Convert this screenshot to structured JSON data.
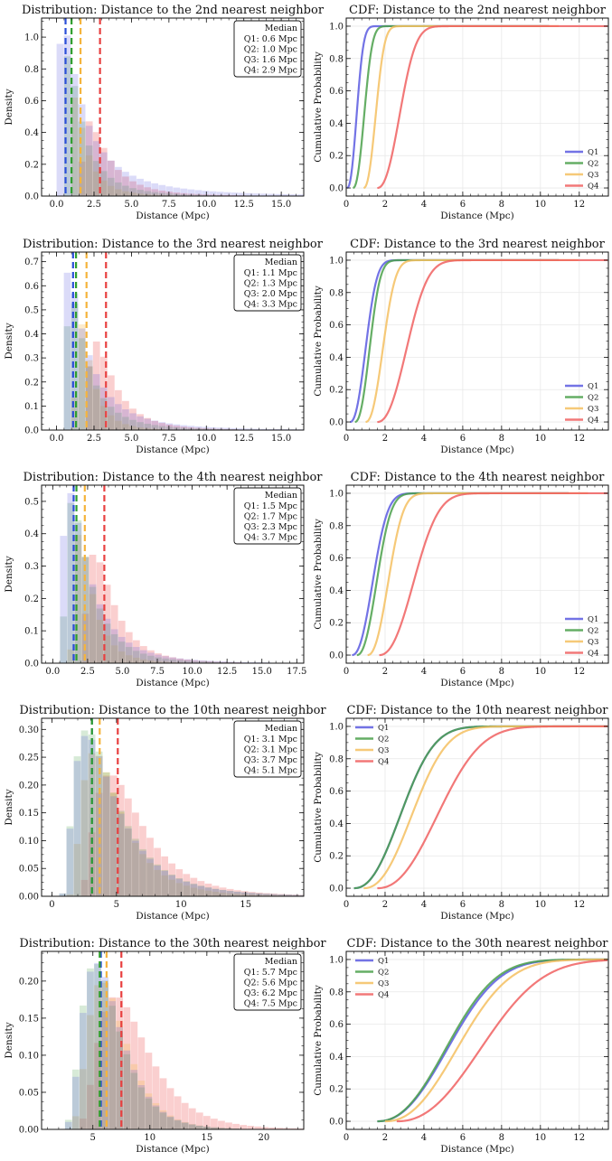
{
  "colors": {
    "Q1": "#5a5ae0",
    "Q2": "#4aa04a",
    "Q3": "#f5c060",
    "Q4": "#f06060",
    "Q1_median": "#2b4ed8",
    "Q2_median": "#2f9e2f",
    "Q3_median": "#f5b43c",
    "Q4_median": "#e84040"
  },
  "chart_data": [
    {
      "type": "bar",
      "title": "Distribution: Distance to the 2nd nearest neighbor",
      "xlabel": "Distance (Mpc)",
      "ylabel": "Density",
      "xlim": [
        -1,
        16.5
      ],
      "ylim": [
        0,
        1.12
      ],
      "xticks": [
        "0.0",
        "2.5",
        "5.0",
        "7.5",
        "10.0",
        "12.5",
        "15.0"
      ],
      "xtick_values": [
        0,
        2.5,
        5,
        7.5,
        10,
        12.5,
        15
      ],
      "yticks": [
        "0.0",
        "0.2",
        "0.4",
        "0.6",
        "0.8",
        "1.0"
      ],
      "ytick_values": [
        0,
        0.2,
        0.4,
        0.6,
        0.8,
        1.0
      ],
      "legend_title": "Median",
      "legend": [
        "Q1: 0.6 Mpc",
        "Q2: 1.0 Mpc",
        "Q3: 1.6 Mpc",
        "Q4: 2.9 Mpc"
      ],
      "medians": [
        0.6,
        1.0,
        1.6,
        2.9
      ],
      "dist_params": [
        {
          "start": 0.05,
          "mode": 0.45,
          "sigma": 0.75
        },
        {
          "start": 0.3,
          "mode": 0.75,
          "sigma": 0.8
        },
        {
          "start": 0.8,
          "mode": 1.2,
          "sigma": 1.0
        },
        {
          "start": 1.5,
          "mode": 2.2,
          "sigma": 1.6
        }
      ],
      "peak_density": [
        1.1,
        0.88,
        0.62,
        0.47
      ]
    },
    {
      "type": "line",
      "title": "CDF: Distance to the 2nd nearest neighbor",
      "xlabel": "Distance (Mpc)",
      "ylabel": "Cumulative Probability",
      "xlim": [
        0,
        13.5
      ],
      "ylim": [
        -0.05,
        1.05
      ],
      "xticks": [
        "0",
        "2",
        "4",
        "6",
        "8",
        "10",
        "12"
      ],
      "xtick_values": [
        0,
        2,
        4,
        6,
        8,
        10,
        12
      ],
      "yticks": [
        "0.0",
        "0.2",
        "0.4",
        "0.6",
        "0.8",
        "1.0"
      ],
      "ytick_values": [
        0,
        0.2,
        0.4,
        0.6,
        0.8,
        1.0
      ],
      "legend_position": "lower-right",
      "series": [
        {
          "name": "Q1",
          "start": 0.05,
          "median": 0.6,
          "end": 10.5
        },
        {
          "name": "Q2",
          "start": 0.35,
          "median": 1.0,
          "end": 10.5
        },
        {
          "name": "Q3",
          "start": 0.9,
          "median": 1.6,
          "end": 11.0
        },
        {
          "name": "Q4",
          "start": 1.6,
          "median": 2.9,
          "end": 13.5
        }
      ]
    },
    {
      "type": "bar",
      "title": "Distribution: Distance to the 3rd nearest neighbor",
      "xlabel": "Distance (Mpc)",
      "ylabel": "Density",
      "xlim": [
        -1,
        16.5
      ],
      "ylim": [
        0,
        0.74
      ],
      "xticks": [
        "0.0",
        "2.5",
        "5.0",
        "7.5",
        "10.0",
        "12.5",
        "15.0"
      ],
      "xtick_values": [
        0,
        2.5,
        5,
        7.5,
        10,
        12.5,
        15
      ],
      "yticks": [
        "0.0",
        "0.1",
        "0.2",
        "0.3",
        "0.4",
        "0.5",
        "0.6",
        "0.7"
      ],
      "ytick_values": [
        0,
        0.1,
        0.2,
        0.3,
        0.4,
        0.5,
        0.6,
        0.7
      ],
      "legend_title": "Median",
      "legend": [
        "Q1: 1.1 Mpc",
        "Q2: 1.3 Mpc",
        "Q3: 2.0 Mpc",
        "Q4: 3.3 Mpc"
      ],
      "medians": [
        1.1,
        1.3,
        2.0,
        3.3
      ],
      "dist_params": [
        {
          "start": 0.3,
          "mode": 0.8,
          "sigma": 0.9
        },
        {
          "start": 0.5,
          "mode": 1.0,
          "sigma": 0.95
        },
        {
          "start": 1.1,
          "mode": 1.6,
          "sigma": 1.1
        },
        {
          "start": 1.8,
          "mode": 2.6,
          "sigma": 1.7
        }
      ],
      "peak_density": [
        0.66,
        0.56,
        0.45,
        0.37
      ]
    },
    {
      "type": "line",
      "title": "CDF: Distance to the 3rd nearest neighbor",
      "xlabel": "Distance (Mpc)",
      "ylabel": "Cumulative Probability",
      "xlim": [
        0,
        13.5
      ],
      "ylim": [
        -0.05,
        1.05
      ],
      "xticks": [
        "0",
        "2",
        "4",
        "6",
        "8",
        "10",
        "12"
      ],
      "xtick_values": [
        0,
        2,
        4,
        6,
        8,
        10,
        12
      ],
      "yticks": [
        "0.0",
        "0.2",
        "0.4",
        "0.6",
        "0.8",
        "1.0"
      ],
      "ytick_values": [
        0,
        0.2,
        0.4,
        0.6,
        0.8,
        1.0
      ],
      "legend_position": "lower-right",
      "series": [
        {
          "name": "Q1",
          "start": 0.2,
          "median": 1.1,
          "end": 11.0
        },
        {
          "name": "Q2",
          "start": 0.45,
          "median": 1.3,
          "end": 11.0
        },
        {
          "name": "Q3",
          "start": 1.0,
          "median": 2.0,
          "end": 12.0
        },
        {
          "name": "Q4",
          "start": 1.6,
          "median": 3.3,
          "end": 13.5
        }
      ]
    },
    {
      "type": "bar",
      "title": "Distribution: Distance to the 4th nearest neighbor",
      "xlabel": "Distance (Mpc)",
      "ylabel": "Density",
      "xlim": [
        -0.8,
        18
      ],
      "ylim": [
        0,
        0.55
      ],
      "xticks": [
        "0.0",
        "2.5",
        "5.0",
        "7.5",
        "10.0",
        "12.5",
        "15.0",
        "17.5"
      ],
      "xtick_values": [
        0,
        2.5,
        5,
        7.5,
        10,
        12.5,
        15,
        17.5
      ],
      "yticks": [
        "0.0",
        "0.1",
        "0.2",
        "0.3",
        "0.4",
        "0.5"
      ],
      "ytick_values": [
        0,
        0.1,
        0.2,
        0.3,
        0.4,
        0.5
      ],
      "legend_title": "Median",
      "legend": [
        "Q1: 1.5 Mpc",
        "Q2: 1.7 Mpc",
        "Q3: 2.3 Mpc",
        "Q4: 3.7 Mpc"
      ],
      "medians": [
        1.5,
        1.7,
        2.3,
        3.7
      ],
      "dist_params": [
        {
          "start": 0.4,
          "mode": 1.2,
          "sigma": 1.0
        },
        {
          "start": 0.6,
          "mode": 1.4,
          "sigma": 1.05
        },
        {
          "start": 1.2,
          "mode": 1.9,
          "sigma": 1.2
        },
        {
          "start": 2.0,
          "mode": 3.0,
          "sigma": 1.8
        }
      ],
      "peak_density": [
        0.53,
        0.5,
        0.4,
        0.34
      ]
    },
    {
      "type": "line",
      "title": "CDF: Distance to the 4th nearest neighbor",
      "xlabel": "Distance (Mpc)",
      "ylabel": "Cumulative Probability",
      "xlim": [
        0,
        13.5
      ],
      "ylim": [
        -0.05,
        1.05
      ],
      "xticks": [
        "0",
        "2",
        "4",
        "6",
        "8",
        "10",
        "12"
      ],
      "xtick_values": [
        0,
        2,
        4,
        6,
        8,
        10,
        12
      ],
      "yticks": [
        "0.0",
        "0.2",
        "0.4",
        "0.6",
        "0.8",
        "1.0"
      ],
      "ytick_values": [
        0,
        0.2,
        0.4,
        0.6,
        0.8,
        1.0
      ],
      "legend_position": "lower-right",
      "series": [
        {
          "name": "Q1",
          "start": 0.3,
          "median": 1.5,
          "end": 11.5
        },
        {
          "name": "Q2",
          "start": 0.55,
          "median": 1.7,
          "end": 11.5
        },
        {
          "name": "Q3",
          "start": 1.1,
          "median": 2.3,
          "end": 12.5
        },
        {
          "name": "Q4",
          "start": 1.7,
          "median": 3.7,
          "end": 13.5
        }
      ]
    },
    {
      "type": "bar",
      "title": "Distribution: Distance to the 10th nearest neighbor",
      "xlabel": "Distance (Mpc)",
      "ylabel": "Density",
      "xlim": [
        -0.8,
        19.5
      ],
      "ylim": [
        0,
        0.32
      ],
      "xticks": [
        "0",
        "5",
        "10",
        "15"
      ],
      "xtick_values": [
        0,
        5,
        10,
        15
      ],
      "yticks": [
        "0.00",
        "0.05",
        "0.10",
        "0.15",
        "0.20",
        "0.25",
        "0.30"
      ],
      "ytick_values": [
        0,
        0.05,
        0.1,
        0.15,
        0.2,
        0.25,
        0.3
      ],
      "legend_title": "Median",
      "legend": [
        "Q1: 3.1 Mpc",
        "Q2: 3.1 Mpc",
        "Q3: 3.7 Mpc",
        "Q4: 5.1 Mpc"
      ],
      "medians": [
        3.1,
        3.1,
        3.7,
        5.1
      ],
      "dist_params": [
        {
          "start": 0.6,
          "mode": 2.7,
          "sigma": 1.5
        },
        {
          "start": 0.6,
          "mode": 2.7,
          "sigma": 1.5
        },
        {
          "start": 1.1,
          "mode": 3.3,
          "sigma": 1.6
        },
        {
          "start": 1.8,
          "mode": 4.5,
          "sigma": 2.1
        }
      ],
      "peak_density": [
        0.29,
        0.3,
        0.26,
        0.22
      ]
    },
    {
      "type": "line",
      "title": "CDF: Distance to the 10th nearest neighbor",
      "xlabel": "Distance (Mpc)",
      "ylabel": "Cumulative Probability",
      "xlim": [
        0,
        13.5
      ],
      "ylim": [
        -0.05,
        1.05
      ],
      "xticks": [
        "0",
        "2",
        "4",
        "6",
        "8",
        "10",
        "12"
      ],
      "xtick_values": [
        0,
        2,
        4,
        6,
        8,
        10,
        12
      ],
      "yticks": [
        "0.0",
        "0.2",
        "0.4",
        "0.6",
        "0.8",
        "1.0"
      ],
      "ytick_values": [
        0,
        0.2,
        0.4,
        0.6,
        0.8,
        1.0
      ],
      "legend_position": "upper-left",
      "series": [
        {
          "name": "Q1",
          "start": 0.4,
          "median": 3.1,
          "end": 13.5
        },
        {
          "name": "Q2",
          "start": 0.4,
          "median": 3.1,
          "end": 13.5
        },
        {
          "name": "Q3",
          "start": 0.9,
          "median": 3.7,
          "end": 13.5
        },
        {
          "name": "Q4",
          "start": 1.6,
          "median": 5.1,
          "end": 13.5
        }
      ]
    },
    {
      "type": "bar",
      "title": "Distribution: Distance to the 30th nearest neighbor",
      "xlabel": "Distance (Mpc)",
      "ylabel": "Density",
      "xlim": [
        0.5,
        23.5
      ],
      "ylim": [
        0,
        0.24
      ],
      "xticks": [
        "5",
        "10",
        "15",
        "20"
      ],
      "xtick_values": [
        5,
        10,
        15,
        20
      ],
      "yticks": [
        "0.00",
        "0.05",
        "0.10",
        "0.15",
        "0.20"
      ],
      "ytick_values": [
        0,
        0.05,
        0.1,
        0.15,
        0.2
      ],
      "legend_title": "Median",
      "legend": [
        "Q1: 5.7 Mpc",
        "Q2: 5.6 Mpc",
        "Q3: 6.2 Mpc",
        "Q4: 7.5 Mpc"
      ],
      "medians": [
        5.7,
        5.6,
        6.2,
        7.5
      ],
      "dist_params": [
        {
          "start": 1.8,
          "mode": 5.3,
          "sigma": 1.8
        },
        {
          "start": 1.8,
          "mode": 5.2,
          "sigma": 1.8
        },
        {
          "start": 2.2,
          "mode": 5.8,
          "sigma": 1.9
        },
        {
          "start": 2.8,
          "mode": 7.0,
          "sigma": 2.5
        }
      ],
      "peak_density": [
        0.225,
        0.225,
        0.2,
        0.18
      ]
    },
    {
      "type": "line",
      "title": "CDF: Distance to the 30th nearest neighbor",
      "xlabel": "Distance (Mpc)",
      "ylabel": "Cumulative Probability",
      "xlim": [
        0,
        13.5
      ],
      "ylim": [
        -0.05,
        1.05
      ],
      "xticks": [
        "0",
        "2",
        "4",
        "6",
        "8",
        "10",
        "12"
      ],
      "xtick_values": [
        0,
        2,
        4,
        6,
        8,
        10,
        12
      ],
      "yticks": [
        "0.0",
        "0.2",
        "0.4",
        "0.6",
        "0.8",
        "1.0"
      ],
      "ytick_values": [
        0,
        0.2,
        0.4,
        0.6,
        0.8,
        1.0
      ],
      "legend_position": "upper-left",
      "series": [
        {
          "name": "Q1",
          "start": 1.6,
          "median": 5.7,
          "end": 13.5
        },
        {
          "name": "Q2",
          "start": 1.6,
          "median": 5.6,
          "end": 13.5
        },
        {
          "name": "Q3",
          "start": 2.0,
          "median": 6.2,
          "end": 13.5
        },
        {
          "name": "Q4",
          "start": 2.6,
          "median": 7.5,
          "end": 13.5
        }
      ]
    }
  ]
}
